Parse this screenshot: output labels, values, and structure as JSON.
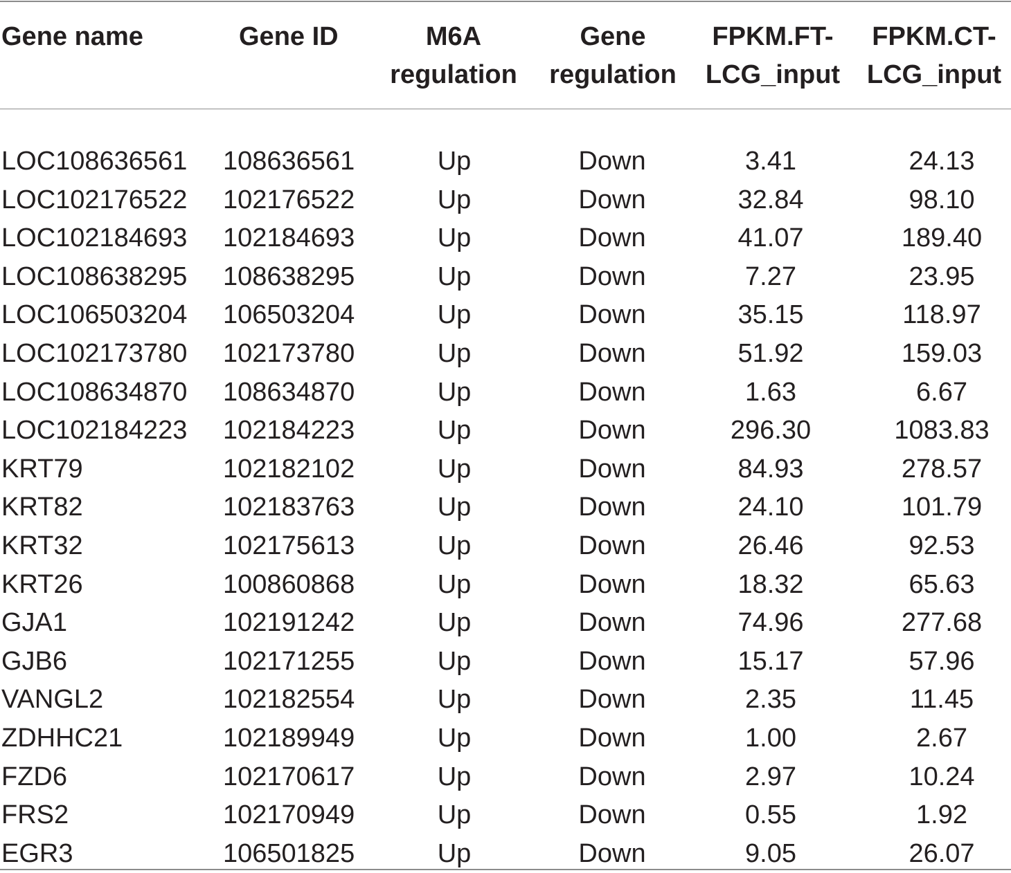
{
  "table": {
    "headers": [
      [
        "Gene name",
        ""
      ],
      [
        "Gene ID",
        ""
      ],
      [
        "M6A",
        "regulation"
      ],
      [
        "Gene",
        "regulation"
      ],
      [
        "FPKM.FT-",
        "LCG_input"
      ],
      [
        "FPKM.CT-",
        "LCG_input"
      ]
    ],
    "rows": [
      [
        "LOC108636561",
        "108636561",
        "Up",
        "Down",
        "3.41",
        "24.13"
      ],
      [
        "LOC102176522",
        "102176522",
        "Up",
        "Down",
        "32.84",
        "98.10"
      ],
      [
        "LOC102184693",
        "102184693",
        "Up",
        "Down",
        "41.07",
        "189.40"
      ],
      [
        "LOC108638295",
        "108638295",
        "Up",
        "Down",
        "7.27",
        "23.95"
      ],
      [
        "LOC106503204",
        "106503204",
        "Up",
        "Down",
        "35.15",
        "118.97"
      ],
      [
        "LOC102173780",
        "102173780",
        "Up",
        "Down",
        "51.92",
        "159.03"
      ],
      [
        "LOC108634870",
        "108634870",
        "Up",
        "Down",
        "1.63",
        "6.67"
      ],
      [
        "LOC102184223",
        "102184223",
        "Up",
        "Down",
        "296.30",
        "1083.83"
      ],
      [
        "KRT79",
        "102182102",
        "Up",
        "Down",
        "84.93",
        "278.57"
      ],
      [
        "KRT82",
        "102183763",
        "Up",
        "Down",
        "24.10",
        "101.79"
      ],
      [
        "KRT32",
        "102175613",
        "Up",
        "Down",
        "26.46",
        "92.53"
      ],
      [
        "KRT26",
        "100860868",
        "Up",
        "Down",
        "18.32",
        "65.63"
      ],
      [
        "GJA1",
        "102191242",
        "Up",
        "Down",
        "74.96",
        "277.68"
      ],
      [
        "GJB6",
        "102171255",
        "Up",
        "Down",
        "15.17",
        "57.96"
      ],
      [
        "VANGL2",
        "102182554",
        "Up",
        "Down",
        "2.35",
        "11.45"
      ],
      [
        "ZDHHC21",
        "102189949",
        "Up",
        "Down",
        "1.00",
        "2.67"
      ],
      [
        "FZD6",
        "102170617",
        "Up",
        "Down",
        "2.97",
        "10.24"
      ],
      [
        "FRS2",
        "102170949",
        "Up",
        "Down",
        "0.55",
        "1.92"
      ],
      [
        "EGR3",
        "106501825",
        "Up",
        "Down",
        "9.05",
        "26.07"
      ]
    ]
  }
}
